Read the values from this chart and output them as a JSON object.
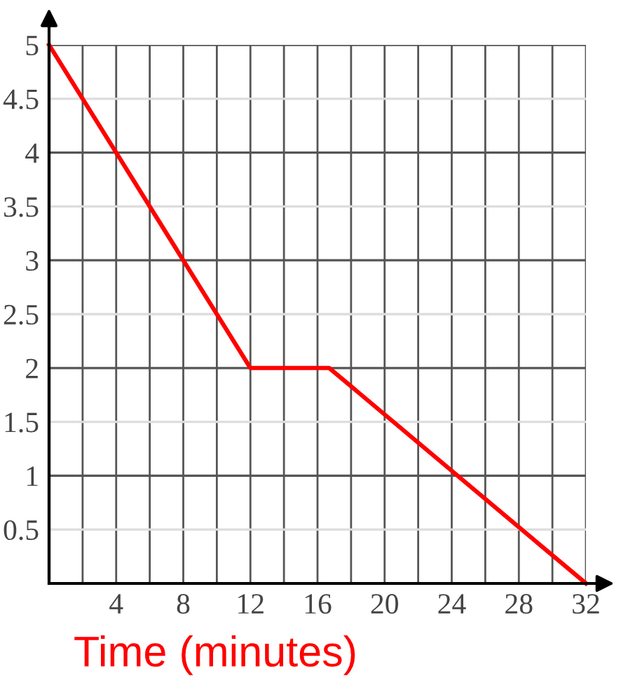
{
  "chart_data": {
    "type": "line",
    "xlabel": "Time (minutes)",
    "x": [
      0,
      12,
      16.7,
      32
    ],
    "series": [
      {
        "color": "#ff0000",
        "values": [
          5,
          2,
          2,
          0
        ]
      }
    ],
    "xlim": [
      0,
      32
    ],
    "ylim": [
      0,
      5
    ],
    "xticks": [
      {
        "value": 2,
        "label": null
      },
      4,
      {
        "value": 6,
        "label": null
      },
      8,
      {
        "value": 10,
        "label": null
      },
      12,
      {
        "value": 14,
        "label": null
      },
      16,
      {
        "value": 18,
        "label": null
      },
      20,
      {
        "value": 22,
        "label": null
      },
      24,
      {
        "value": 26,
        "label": null
      },
      28,
      {
        "value": 30,
        "label": null
      },
      32
    ],
    "yticks": [
      0.5,
      1,
      1.5,
      2,
      2.5,
      3,
      3.5,
      4,
      4.5,
      5
    ],
    "grid": true,
    "marker": "none",
    "line_style": "solid"
  }
}
